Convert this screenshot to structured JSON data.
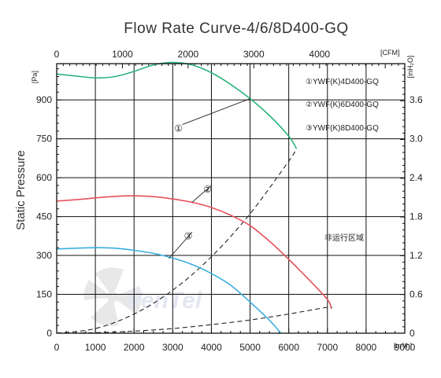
{
  "chart_data": {
    "type": "line",
    "title": "Flow Rate Curve-4/6/8D400-GQ",
    "ylabel": "Static Pressure",
    "x_unit_label": "[m³/h]",
    "x_top_unit_label": "[CFM]",
    "y_unit_label": "[Pa]",
    "y_right_unit_label": "[inH₂O]",
    "xlim": [
      0,
      9000
    ],
    "ylim": [
      0,
      1040
    ],
    "x_ticks": [
      "0",
      "1000",
      "2000",
      "3000",
      "4000",
      "5000",
      "6000",
      "7000",
      "8000",
      "9000"
    ],
    "y_ticks": [
      "0",
      "150",
      "300",
      "450",
      "600",
      "750",
      "900"
    ],
    "x_top_ticks": [
      "0",
      "1000",
      "2000",
      "3000",
      "4000"
    ],
    "y_right_ticks": [
      "0",
      "0.6",
      "1.2",
      "1.8",
      "2.4",
      "3.0",
      "3.6"
    ],
    "series": [
      {
        "name": "①YWF(K)4D400-GQ",
        "marker": "①",
        "color": "#2db37c",
        "x": [
          0,
          500,
          1000,
          1500,
          2000,
          2500,
          3000,
          3500,
          4000,
          4500,
          5000,
          5500,
          6000,
          6200
        ],
        "y": [
          1000,
          992,
          985,
          990,
          1010,
          1035,
          1045,
          1035,
          1005,
          960,
          905,
          840,
          760,
          712
        ]
      },
      {
        "name": "②YWF(K)6D400-GQ",
        "marker": "②",
        "color": "#e8505b",
        "x": [
          0,
          500,
          1000,
          1500,
          2000,
          2500,
          3000,
          3500,
          4000,
          4500,
          5000,
          5500,
          6000,
          6500,
          7000,
          7100
        ],
        "y": [
          510,
          515,
          522,
          528,
          530,
          527,
          518,
          505,
          485,
          455,
          415,
          355,
          285,
          210,
          130,
          95
        ]
      },
      {
        "name": "③YWF(K)8D400-GQ",
        "marker": "③",
        "color": "#3aaee0",
        "x": [
          0,
          500,
          1000,
          1500,
          2000,
          2500,
          3000,
          3500,
          4000,
          4500,
          5000,
          5500,
          5800
        ],
        "y": [
          325,
          328,
          330,
          328,
          320,
          308,
          290,
          265,
          230,
          185,
          120,
          50,
          0
        ]
      }
    ],
    "system_curves": [
      {
        "x": [
          0,
          1000,
          2000,
          3000,
          4000,
          5000,
          6000,
          6200
        ],
        "y": [
          0,
          18,
          74,
          166,
          295,
          461,
          664,
          712
        ]
      },
      {
        "x": [
          0,
          1000,
          2000,
          3000,
          4000,
          5000,
          6000,
          7000,
          7100
        ],
        "y": [
          0,
          2,
          8,
          18,
          33,
          51,
          74,
          100,
          95
        ]
      }
    ],
    "legend": [
      "①YWF(K)4D400-GQ",
      "②YWF(K)6D400-GQ",
      "③YWF(K)8D400-GQ"
    ],
    "annotations": [
      "非运行区域"
    ],
    "grid": true
  }
}
